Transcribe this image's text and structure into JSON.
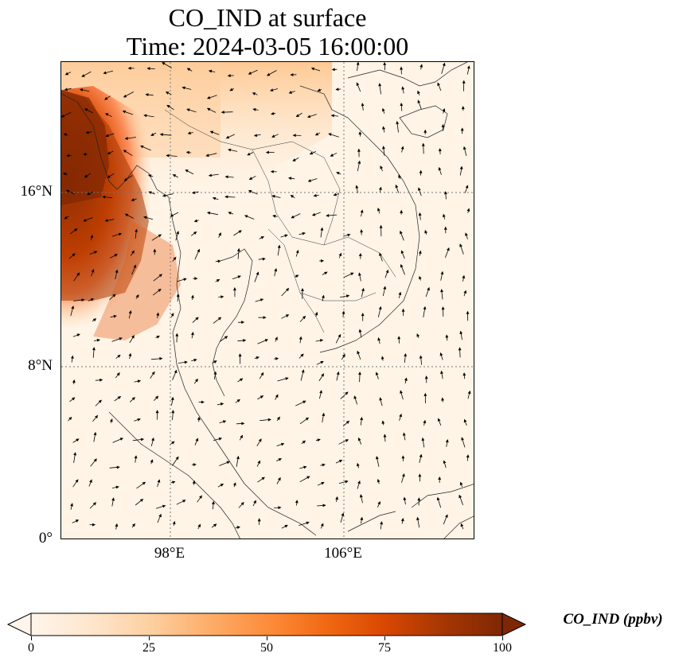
{
  "title": {
    "line1": "CO_IND at surface",
    "line2": "Time: 2024-03-05 16:00:00"
  },
  "map": {
    "extent": {
      "lon_min": 93,
      "lon_max": 112,
      "lat_min": 0,
      "lat_max": 22
    },
    "lat_ticks": [
      {
        "value": 16,
        "label": "16°N"
      },
      {
        "value": 8,
        "label": "8°N"
      },
      {
        "value": 0,
        "label": "0°"
      }
    ],
    "lon_ticks": [
      {
        "value": 98,
        "label": "98°E"
      },
      {
        "value": 106,
        "label": "106°E"
      }
    ],
    "gridlines": true,
    "plume": {
      "description_colors": [
        "#fff5eb",
        "#fdd0a2",
        "#fd8d3c",
        "#d94801",
        "#7f2704"
      ]
    }
  },
  "colorbar": {
    "label": "CO_IND (ppbv)",
    "min": 0,
    "max": 100,
    "ticks": [
      {
        "value": 0,
        "label": "0"
      },
      {
        "value": 25,
        "label": "25"
      },
      {
        "value": 50,
        "label": "50"
      },
      {
        "value": 75,
        "label": "75"
      },
      {
        "value": 100,
        "label": "100"
      }
    ],
    "colormap": [
      "#fff5eb",
      "#fee6ce",
      "#fdd0a2",
      "#fdae6b",
      "#fd8d3c",
      "#f16913",
      "#d94801",
      "#a63603",
      "#7f2704"
    ],
    "extend": "both"
  }
}
